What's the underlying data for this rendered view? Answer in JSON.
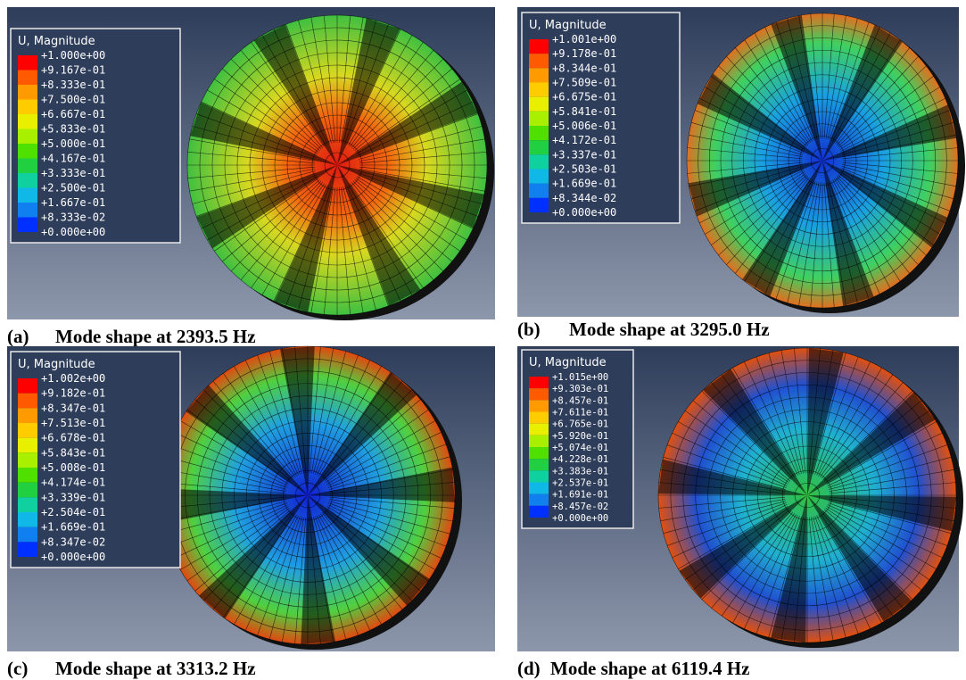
{
  "panels": [
    {
      "legend_title": "U, Magnitude",
      "legend_values": [
        "+1.000e+00",
        "+9.167e-01",
        "+8.333e-01",
        "+7.500e-01",
        "+6.667e-01",
        "+5.833e-01",
        "+5.000e-01",
        "+4.167e-01",
        "+3.333e-01",
        "+2.500e-01",
        "+1.667e-01",
        "+8.333e-02",
        "+0.000e+00"
      ],
      "caption_label": "(a)",
      "caption": "Mode shape at 2393.5 Hz"
    },
    {
      "legend_title": "U, Magnitude",
      "legend_values": [
        "+1.001e+00",
        "+9.178e-01",
        "+8.344e-01",
        "+7.509e-01",
        "+6.675e-01",
        "+5.841e-01",
        "+5.006e-01",
        "+4.172e-01",
        "+3.337e-01",
        "+2.503e-01",
        "+1.669e-01",
        "+8.344e-02",
        "+0.000e+00"
      ],
      "caption_label": "(b)",
      "caption": "Mode shape at 3295.0 Hz"
    },
    {
      "legend_title": "U, Magnitude",
      "legend_values": [
        "+1.002e+00",
        "+9.182e-01",
        "+8.347e-01",
        "+7.513e-01",
        "+6.678e-01",
        "+5.843e-01",
        "+5.008e-01",
        "+4.174e-01",
        "+3.339e-01",
        "+2.504e-01",
        "+1.669e-01",
        "+8.347e-02",
        "+0.000e+00"
      ],
      "caption_label": "(c)",
      "caption": "Mode shape at 3313.2 Hz"
    },
    {
      "legend_title": "U, Magnitude",
      "legend_values": [
        "+1.015e+00",
        "+9.303e-01",
        "+8.457e-01",
        "+7.611e-01",
        "+6.765e-01",
        "+5.920e-01",
        "+5.074e-01",
        "+4.228e-01",
        "+3.383e-01",
        "+2.537e-01",
        "+1.691e-01",
        "+8.457e-02",
        "+0.000e+00"
      ],
      "caption_label": "(d)",
      "caption": "Mode shape at 6119.4 Hz"
    }
  ]
}
